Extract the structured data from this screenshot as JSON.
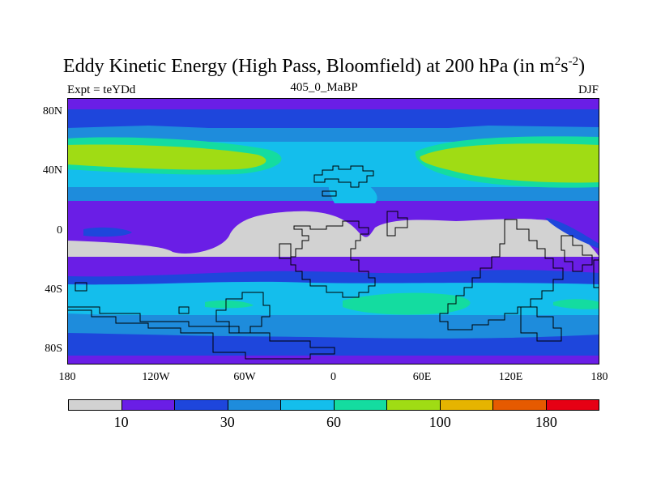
{
  "title": "Eddy Kinetic Energy (High Pass, Bloomfield) at 200 hPa (in m",
  "title_sup1": "2",
  "title_mid": "s",
  "title_sup2": "-2",
  "title_end": ")",
  "subtitle": "405_0_MaBP",
  "left_label": "Expt = teYDd",
  "right_label": "DJF",
  "axes": {
    "y_ticks": [
      {
        "label": "80N",
        "lat": 80
      },
      {
        "label": "40N",
        "lat": 40
      },
      {
        "label": "0",
        "lat": 0
      },
      {
        "label": "40S",
        "lat": -40
      },
      {
        "label": "80S",
        "lat": -80
      }
    ],
    "x_ticks": [
      {
        "label": "180",
        "lon": -180
      },
      {
        "label": "120W",
        "lon": -120
      },
      {
        "label": "60W",
        "lon": -60
      },
      {
        "label": "0",
        "lon": 0
      },
      {
        "label": "60E",
        "lon": 60
      },
      {
        "label": "120E",
        "lon": 120
      },
      {
        "label": "180",
        "lon": 180
      }
    ],
    "lon_range": [
      -180,
      180
    ],
    "lat_range": [
      -90,
      90
    ]
  },
  "colorbar": {
    "colors": [
      "#d2d2d2",
      "#6a1ee6",
      "#1e46dc",
      "#1e8cdc",
      "#14beec",
      "#14dca0",
      "#a0dc14",
      "#e6b400",
      "#e65a00",
      "#e60014"
    ],
    "tick_labels": [
      {
        "label": "10",
        "index": 1
      },
      {
        "label": "30",
        "index": 3
      },
      {
        "label": "60",
        "index": 5
      },
      {
        "label": "100",
        "index": 7
      },
      {
        "label": "180",
        "index": 9
      }
    ]
  },
  "color_legend": {
    "gray": "#d2d2d2",
    "purple": "#6a1ee6",
    "blue": "#1e46dc",
    "midblue": "#1e8cdc",
    "cyan": "#14beec",
    "green": "#14dca0",
    "lime": "#a0dc14"
  }
}
